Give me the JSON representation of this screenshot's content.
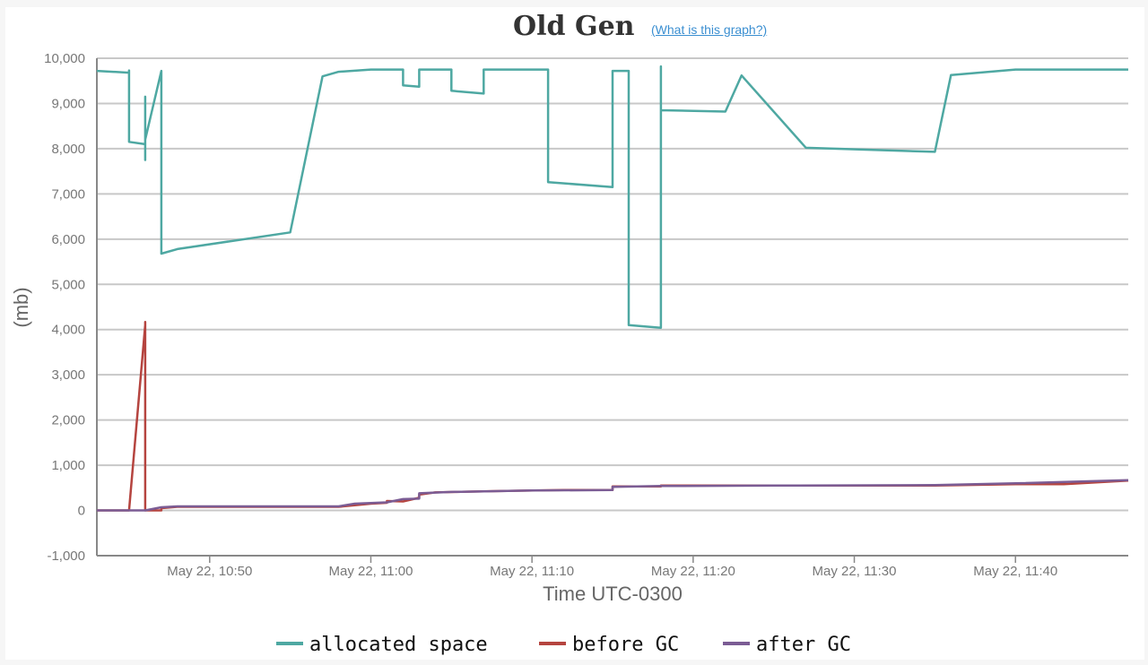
{
  "chart_data": {
    "type": "line",
    "title": "Old Gen",
    "help_link": "(What is this graph?)",
    "xlabel": "Time UTC-0300",
    "ylabel": "(mb)",
    "ylim": [
      -1000,
      10000
    ],
    "y_ticks": [
      -1000,
      0,
      1000,
      2000,
      3000,
      4000,
      5000,
      6000,
      7000,
      8000,
      9000,
      10000
    ],
    "y_tick_labels": [
      "-1,000",
      "0",
      "1,000",
      "2,000",
      "3,000",
      "4,000",
      "5,000",
      "6,000",
      "7,000",
      "8,000",
      "9,000",
      "10,000"
    ],
    "xlim": [
      "10:43",
      "11:47"
    ],
    "x_ticks": [
      "10:50",
      "11:00",
      "11:10",
      "11:20",
      "11:30",
      "11:40"
    ],
    "x_tick_labels": [
      "May 22, 10:50",
      "May 22, 11:00",
      "May 22, 11:10",
      "May 22, 11:20",
      "May 22, 11:30",
      "May 22, 11:40"
    ],
    "grid": true,
    "legend_position": "bottom",
    "series": [
      {
        "name": "allocated space",
        "color": "#4ea8a2",
        "points": [
          [
            "10:43",
            9720
          ],
          [
            "10:45",
            9680
          ],
          [
            "10:45",
            9730
          ],
          [
            "10:45",
            8600
          ],
          [
            "10:45",
            8150
          ],
          [
            "10:46",
            8100
          ],
          [
            "10:46",
            8050
          ],
          [
            "10:46",
            9150
          ],
          [
            "10:46",
            7750
          ],
          [
            "10:46",
            9100
          ],
          [
            "10:46",
            8200
          ],
          [
            "10:47",
            9720
          ],
          [
            "10:47",
            8300
          ],
          [
            "10:47",
            9700
          ],
          [
            "10:47",
            5680
          ],
          [
            "10:48",
            5780
          ],
          [
            "10:55",
            6150
          ],
          [
            "10:57",
            9600
          ],
          [
            "10:58",
            9700
          ],
          [
            "11:00",
            9750
          ],
          [
            "11:02",
            9750
          ],
          [
            "11:02",
            9400
          ],
          [
            "11:03",
            9370
          ],
          [
            "11:03",
            9750
          ],
          [
            "11:04",
            9750
          ],
          [
            "11:05",
            9750
          ],
          [
            "11:05",
            9280
          ],
          [
            "11:07",
            9220
          ],
          [
            "11:07",
            9750
          ],
          [
            "11:11",
            9750
          ],
          [
            "11:11",
            7260
          ],
          [
            "11:15",
            7150
          ],
          [
            "11:15",
            9600
          ],
          [
            "11:15",
            9720
          ],
          [
            "11:16",
            9720
          ],
          [
            "11:16",
            9680
          ],
          [
            "11:16",
            9100
          ],
          [
            "11:16",
            6650
          ],
          [
            "11:16",
            6300
          ],
          [
            "11:16",
            8000
          ],
          [
            "11:16",
            4100
          ],
          [
            "11:18",
            4040
          ],
          [
            "11:18",
            9780
          ],
          [
            "11:18",
            8830
          ],
          [
            "11:18",
            9820
          ],
          [
            "11:18",
            8850
          ],
          [
            "11:22",
            8820
          ],
          [
            "11:23",
            9620
          ],
          [
            "11:27",
            8020
          ],
          [
            "11:35",
            7930
          ],
          [
            "11:36",
            9630
          ],
          [
            "11:40",
            9750
          ],
          [
            "11:47",
            9750
          ]
        ]
      },
      {
        "name": "before GC",
        "color": "#b5443f",
        "points": [
          [
            "10:43",
            0
          ],
          [
            "10:45",
            0
          ],
          [
            "10:46",
            4100
          ],
          [
            "10:46",
            3500
          ],
          [
            "10:46",
            4170
          ],
          [
            "10:46",
            0
          ],
          [
            "10:47",
            0
          ],
          [
            "10:47",
            60
          ],
          [
            "10:47",
            50
          ],
          [
            "10:48",
            80
          ],
          [
            "10:55",
            80
          ],
          [
            "10:58",
            80
          ],
          [
            "11:00",
            150
          ],
          [
            "11:01",
            170
          ],
          [
            "11:01",
            210
          ],
          [
            "11:02",
            200
          ],
          [
            "11:03",
            280
          ],
          [
            "11:03",
            350
          ],
          [
            "11:04",
            400
          ],
          [
            "11:08",
            430
          ],
          [
            "11:12",
            450
          ],
          [
            "11:15",
            450
          ],
          [
            "11:15",
            530
          ],
          [
            "11:18",
            530
          ],
          [
            "11:18",
            550
          ],
          [
            "11:25",
            550
          ],
          [
            "11:35",
            550
          ],
          [
            "11:40",
            580
          ],
          [
            "11:43",
            580
          ],
          [
            "11:47",
            660
          ]
        ]
      },
      {
        "name": "after GC",
        "color": "#7b5c94",
        "points": [
          [
            "10:43",
            0
          ],
          [
            "10:46",
            0
          ],
          [
            "10:47",
            70
          ],
          [
            "10:48",
            90
          ],
          [
            "10:58",
            90
          ],
          [
            "10:59",
            150
          ],
          [
            "11:01",
            180
          ],
          [
            "11:02",
            250
          ],
          [
            "11:03",
            260
          ],
          [
            "11:03",
            380
          ],
          [
            "11:05",
            410
          ],
          [
            "11:10",
            440
          ],
          [
            "11:15",
            450
          ],
          [
            "11:15",
            520
          ],
          [
            "11:18",
            540
          ],
          [
            "11:25",
            550
          ],
          [
            "11:35",
            560
          ],
          [
            "11:40",
            600
          ],
          [
            "11:47",
            670
          ]
        ]
      }
    ]
  }
}
